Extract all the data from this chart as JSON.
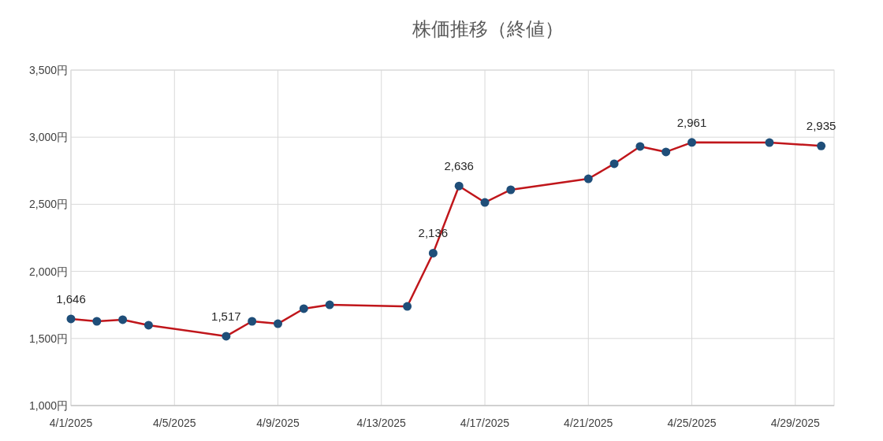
{
  "chart_data": {
    "type": "line",
    "title": "株価推移（終値）",
    "x": [
      "2025-04-01",
      "2025-04-02",
      "2025-04-03",
      "2025-04-04",
      "2025-04-07",
      "2025-04-08",
      "2025-04-09",
      "2025-04-10",
      "2025-04-11",
      "2025-04-14",
      "2025-04-15",
      "2025-04-16",
      "2025-04-17",
      "2025-04-18",
      "2025-04-21",
      "2025-04-22",
      "2025-04-23",
      "2025-04-24",
      "2025-04-25",
      "2025-04-28",
      "2025-04-30"
    ],
    "series": [
      {
        "color": "#c0161b",
        "colors": [
          "#1f4e79",
          "#1f4e79",
          "#1f4e79",
          "#1f4e79",
          "#1f4e79",
          "#1f4e79",
          "#1f4e79",
          "#1f4e79",
          "#1f4e79",
          "#1f4e79",
          "#1f4e79",
          "#1f4e79",
          "#1f4e79",
          "#1f4e79",
          "#1f4e79",
          "#1f4e79",
          "#1f4e79",
          "#1f4e79",
          "#1f4e79",
          "#1f4e79",
          "#1f4e79"
        ],
        "values": [
          1646,
          1628,
          1640,
          1599,
          1517,
          1628,
          1610,
          1722,
          1751,
          1739,
          2136,
          2636,
          2514,
          2608,
          2690,
          2802,
          2931,
          2890,
          2961,
          2960,
          2935
        ],
        "value_labels": [
          "1,646",
          null,
          null,
          null,
          "1,517",
          null,
          null,
          null,
          null,
          null,
          "2,136",
          "2,636",
          null,
          null,
          null,
          null,
          null,
          null,
          "2,961",
          null,
          "2,935"
        ]
      }
    ],
    "xlim": [
      "2025-04-01",
      "2025-04-30T12:00"
    ],
    "xticks": [
      {
        "value": "2025-04-01",
        "label": "4/1/2025"
      },
      {
        "value": "2025-04-05",
        "label": "4/5/2025"
      },
      {
        "value": "2025-04-09",
        "label": "4/9/2025"
      },
      {
        "value": "2025-04-13",
        "label": "4/13/2025"
      },
      {
        "value": "2025-04-17",
        "label": "4/17/2025"
      },
      {
        "value": "2025-04-21",
        "label": "4/21/2025"
      },
      {
        "value": "2025-04-25",
        "label": "4/25/2025"
      },
      {
        "value": "2025-04-29",
        "label": "4/29/2025"
      }
    ],
    "ylim": [
      1000,
      3500
    ],
    "yticks": [
      {
        "value": 1000,
        "label": "1,000円"
      },
      {
        "value": 1500,
        "label": "1,500円"
      },
      {
        "value": 2000,
        "label": "2,000円"
      },
      {
        "value": 2500,
        "label": "2,500円"
      },
      {
        "value": 3000,
        "label": "3,000円"
      },
      {
        "value": 3500,
        "label": "3,500円"
      }
    ],
    "grid": true,
    "marker": "circle",
    "line_style": "solid"
  }
}
